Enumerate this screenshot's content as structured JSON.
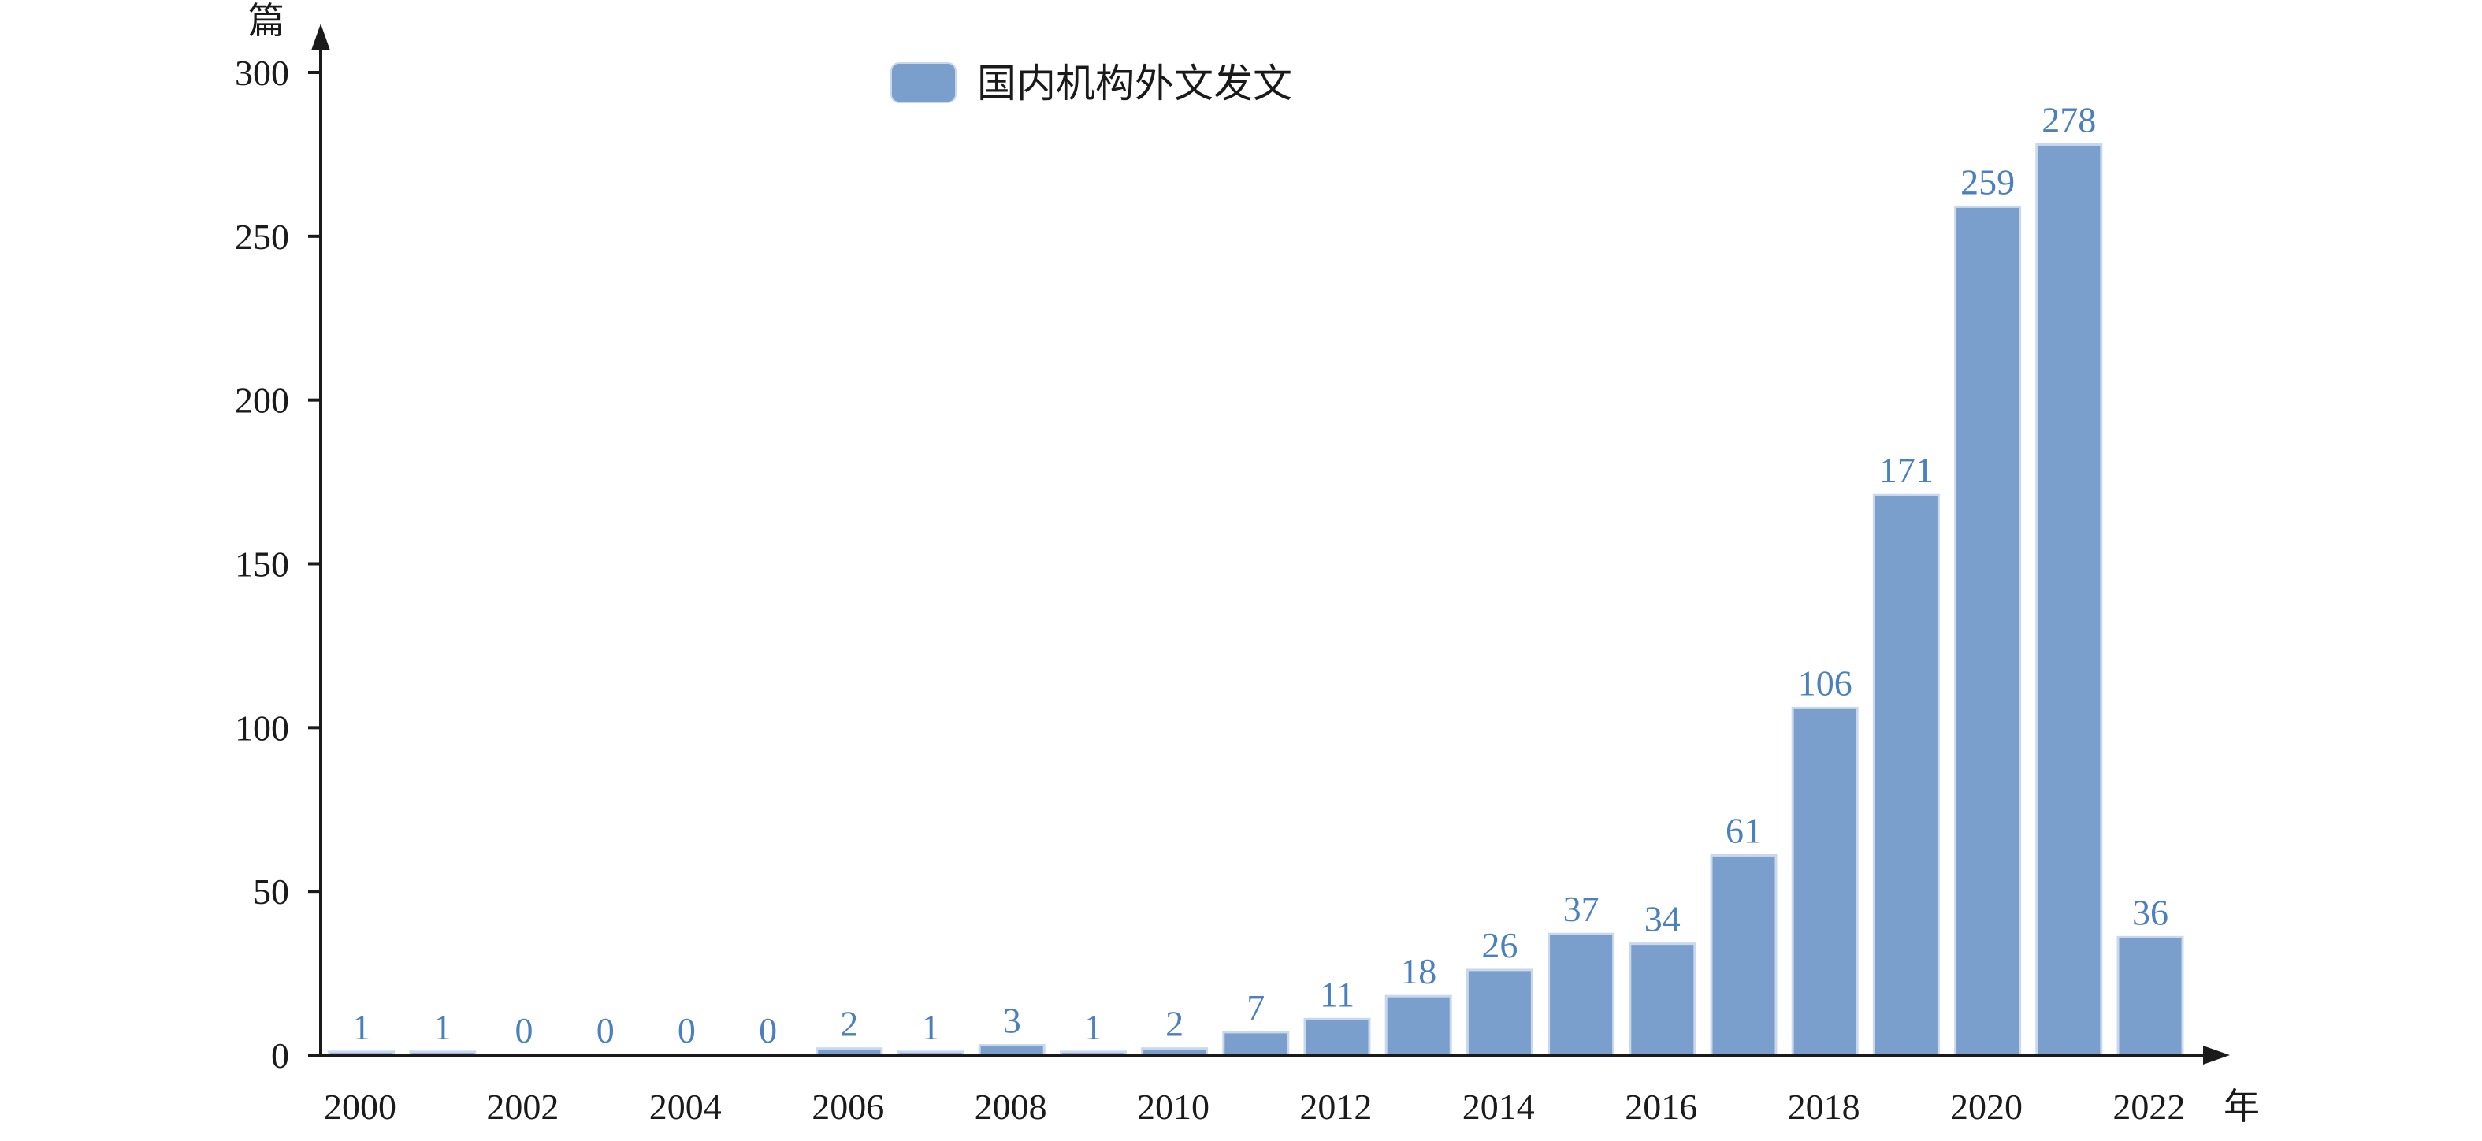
{
  "chart_data": {
    "type": "bar",
    "title": "",
    "xlabel": "年",
    "ylabel": "篇",
    "ylim": [
      0,
      300
    ],
    "yticks": [
      0,
      50,
      100,
      150,
      200,
      250,
      300
    ],
    "grid": false,
    "legend_position": "top-center",
    "categories": [
      "2000",
      "2001",
      "2002",
      "2003",
      "2004",
      "2005",
      "2006",
      "2007",
      "2008",
      "2009",
      "2010",
      "2011",
      "2012",
      "2013",
      "2014",
      "2015",
      "2016",
      "2017",
      "2018",
      "2019",
      "2020",
      "2021",
      "2022"
    ],
    "xtick_labels": [
      "2000",
      "",
      "2002",
      "",
      "2004",
      "",
      "2006",
      "",
      "2008",
      "",
      "2010",
      "",
      "2012",
      "",
      "2014",
      "",
      "2016",
      "",
      "2018",
      "",
      "2020",
      "",
      "2022"
    ],
    "series": [
      {
        "name": "国内机构外文发文",
        "values": [
          1,
          1,
          0,
          0,
          0,
          0,
          2,
          1,
          3,
          1,
          2,
          7,
          11,
          18,
          26,
          37,
          34,
          61,
          106,
          171,
          259,
          278,
          36
        ]
      }
    ],
    "colors": {
      "bar": "#7a9fcc",
      "bar_edge": "#c9d8ec",
      "data_label": "#4a7fc0",
      "axis": "#1a1a1a"
    }
  }
}
